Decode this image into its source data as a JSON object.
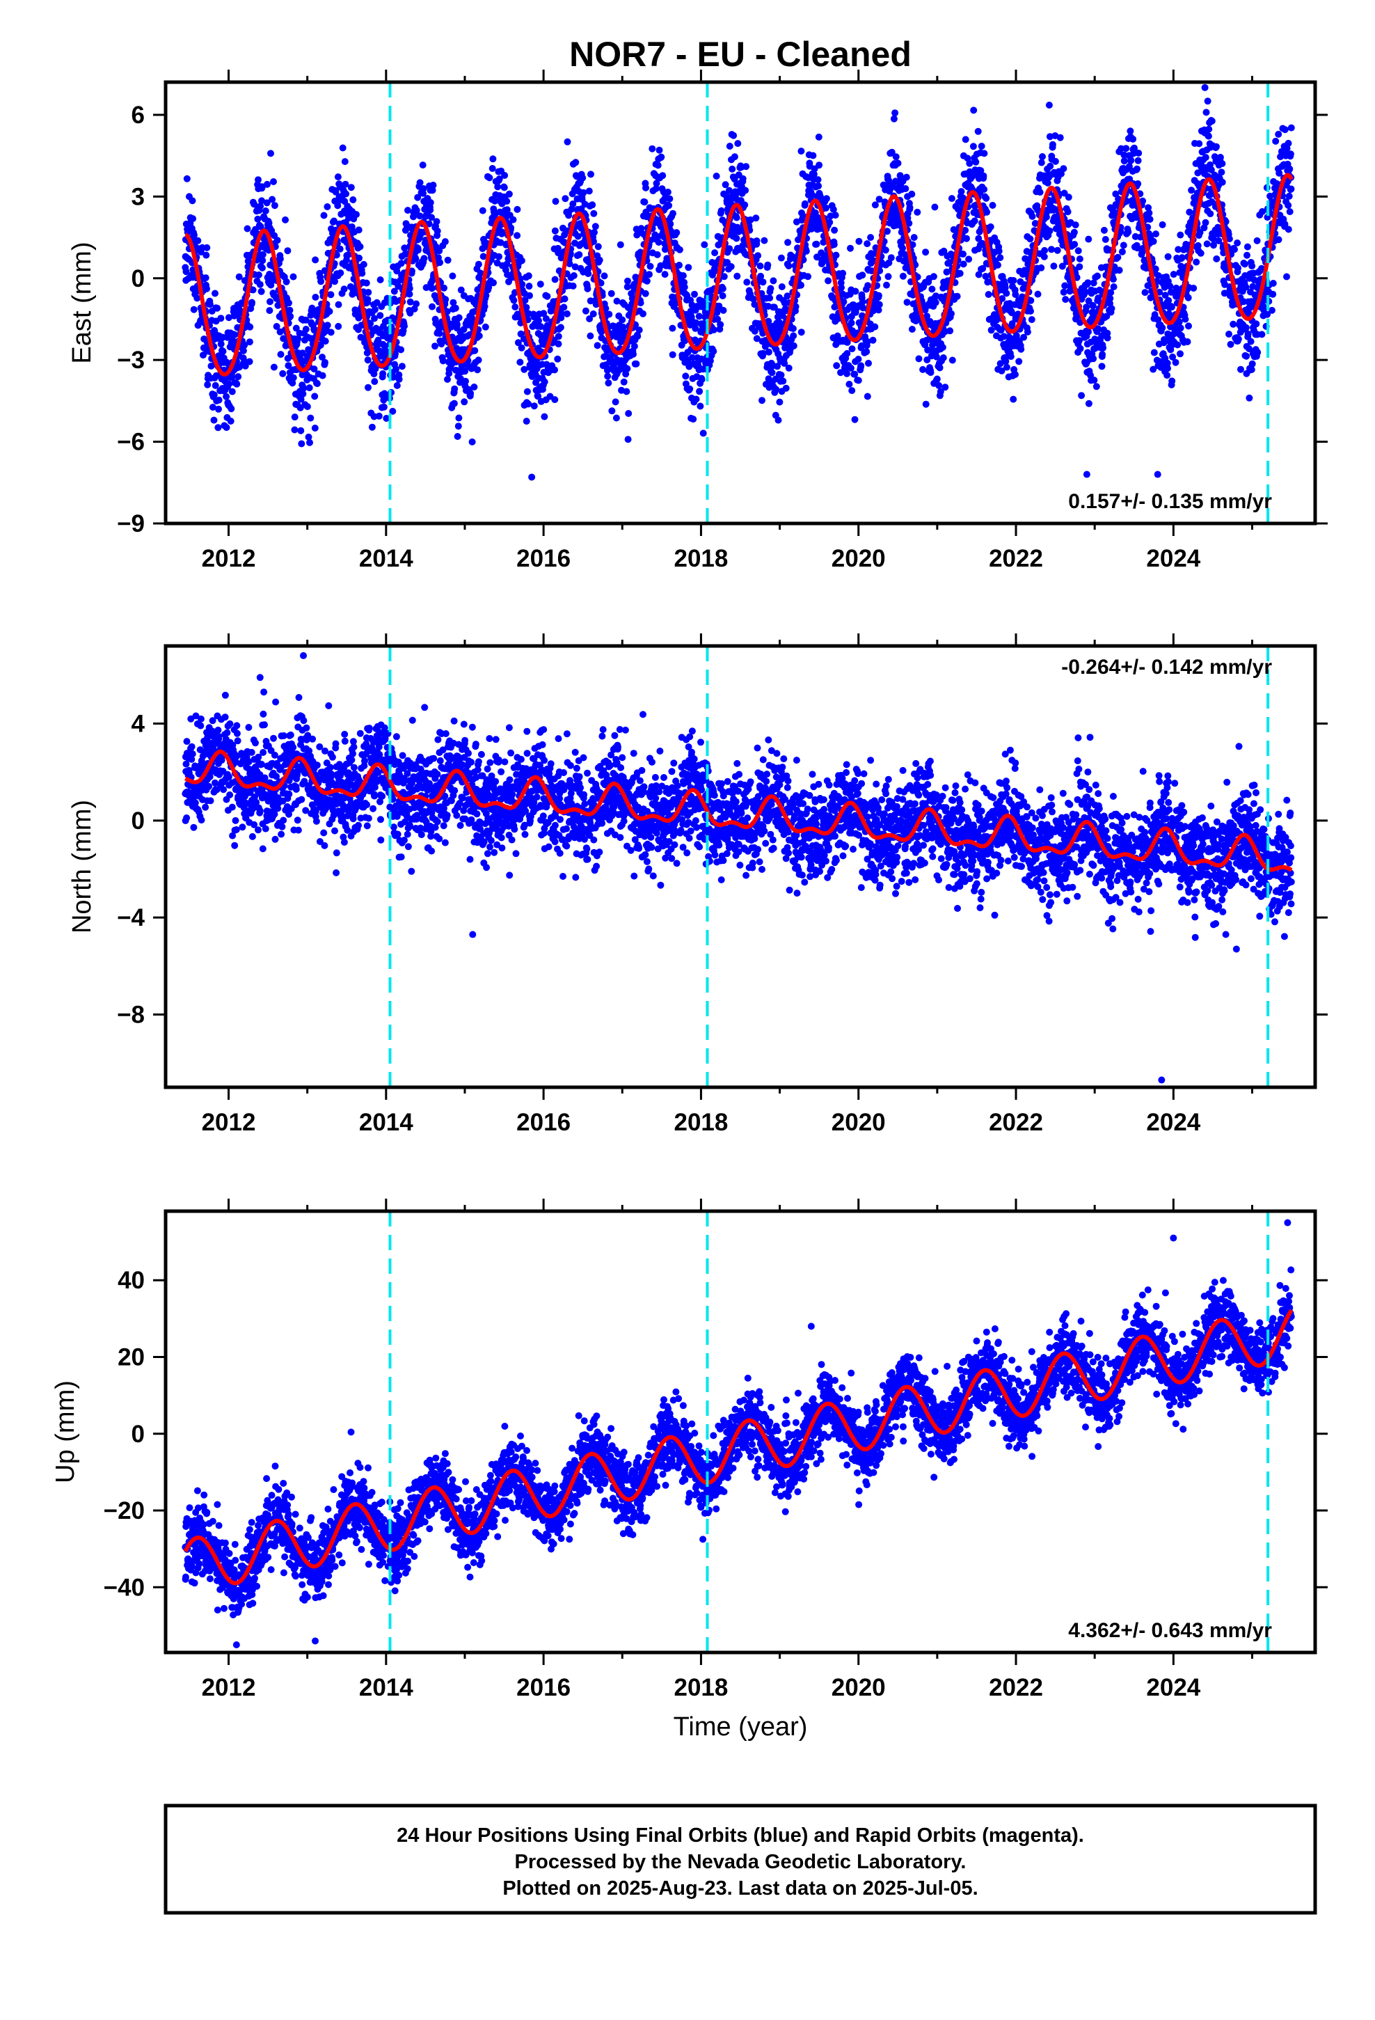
{
  "title": "NOR7  - EU - Cleaned",
  "xlabel": "Time (year)",
  "footer": [
    "24 Hour Positions Using Final Orbits (blue) and Rapid Orbits (magenta).",
    "Processed by the Nevada Geodetic Laboratory.",
    "Plotted on 2025-Aug-23. Last data on 2025-Jul-05."
  ],
  "colors": {
    "points": "#0000ff",
    "model": "#ff0000",
    "breaks": "#00e5ee",
    "frame": "#000000"
  },
  "chart_data": [
    {
      "type": "scatter",
      "ylabel": "East (mm)",
      "xlim": [
        2011.2,
        2025.8
      ],
      "ylim": [
        -9,
        7.2
      ],
      "xticks": [
        2012,
        2014,
        2016,
        2018,
        2020,
        2022,
        2024
      ],
      "yticks": [
        -9,
        -6,
        -3,
        0,
        3,
        6
      ],
      "ytick_labels": [
        "−9",
        "−6",
        "−3",
        "0",
        "3",
        "6"
      ],
      "rate_text": "0.157+/- 0.135 mm/yr",
      "rate_position": "bottom-right",
      "breaks": [
        2014.05,
        2018.08,
        2025.2
      ],
      "data_range": [
        2011.45,
        2025.5
      ],
      "model": {
        "trend_mm_per_yr": 0.157,
        "offset": -0.1,
        "annual_amplitude": 2.6,
        "annual_peak_phase": 0.45,
        "semiannual_amplitude": 0.2,
        "noise_sd": 1.1
      },
      "outliers": [
        [
          2015.85,
          -7.3
        ],
        [
          2022.9,
          -7.2
        ],
        [
          2023.8,
          -7.2
        ],
        [
          2024.4,
          7.0
        ],
        [
          2011.5,
          3.0
        ]
      ]
    },
    {
      "type": "scatter",
      "ylabel": "North (mm)",
      "xlim": [
        2011.2,
        2025.8
      ],
      "ylim": [
        -11,
        7.2
      ],
      "xticks": [
        2012,
        2014,
        2016,
        2018,
        2020,
        2022,
        2024
      ],
      "yticks": [
        -8,
        -4,
        0,
        4
      ],
      "ytick_labels": [
        "−8",
        "−4",
        "0",
        "4"
      ],
      "rate_text": "-0.264+/- 0.142 mm/yr",
      "rate_position": "top-right",
      "breaks": [
        2014.05,
        2018.08,
        2025.2
      ],
      "data_range": [
        2011.45,
        2025.5
      ],
      "model": {
        "trend_mm_per_yr": -0.264,
        "offset": 0.2,
        "annual_amplitude": 0.6,
        "annual_peak_phase": 0.9,
        "semiannual_amplitude": 0.3,
        "noise_sd": 1.0
      },
      "outliers": [
        [
          2012.95,
          6.8
        ],
        [
          2012.4,
          5.9
        ],
        [
          2023.85,
          -10.7
        ],
        [
          2015.1,
          -4.7
        ],
        [
          2024.8,
          -5.3
        ]
      ]
    },
    {
      "type": "scatter",
      "ylabel": "Up (mm)",
      "xlim": [
        2011.2,
        2025.8
      ],
      "ylim": [
        -57,
        58
      ],
      "xticks": [
        2012,
        2014,
        2016,
        2018,
        2020,
        2022,
        2024
      ],
      "yticks": [
        -40,
        -20,
        0,
        20,
        40
      ],
      "ytick_labels": [
        "−40",
        "−20",
        "0",
        "20",
        "40"
      ],
      "rate_text": "4.362+/- 0.643 mm/yr",
      "rate_position": "bottom-right",
      "breaks": [
        2014.05,
        2018.08,
        2025.2
      ],
      "data_range": [
        2011.45,
        2025.5
      ],
      "model": {
        "trend_mm_per_yr": 4.362,
        "offset": -4.0,
        "annual_amplitude": 7.0,
        "annual_peak_phase": 0.6,
        "semiannual_amplitude": 0.0,
        "noise_sd": 4.5
      },
      "outliers": [
        [
          2013.1,
          -54
        ],
        [
          2012.1,
          -55
        ],
        [
          2025.45,
          55
        ],
        [
          2024.0,
          51
        ],
        [
          2019.4,
          28
        ]
      ]
    }
  ]
}
